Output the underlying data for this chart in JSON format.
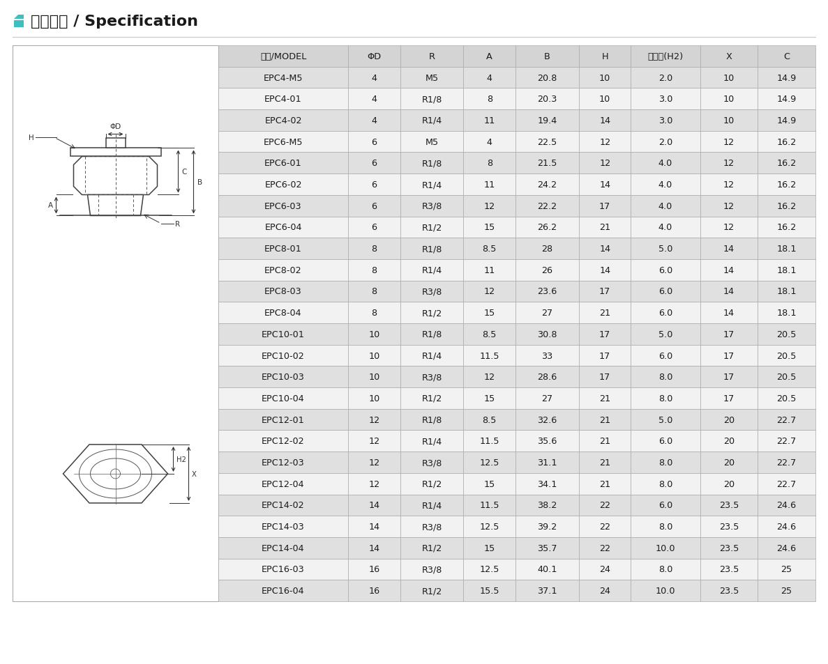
{
  "title": "技术参数 / Specification",
  "columns": [
    "型号/MODEL",
    "ΦD",
    "R",
    "A",
    "B",
    "H",
    "内六角(H2)",
    "X",
    "C"
  ],
  "rows": [
    [
      "EPC4-M5",
      "4",
      "M5",
      "4",
      "20.8",
      "10",
      "2.0",
      "10",
      "14.9"
    ],
    [
      "EPC4-01",
      "4",
      "R1/8",
      "8",
      "20.3",
      "10",
      "3.0",
      "10",
      "14.9"
    ],
    [
      "EPC4-02",
      "4",
      "R1/4",
      "11",
      "19.4",
      "14",
      "3.0",
      "10",
      "14.9"
    ],
    [
      "EPC6-M5",
      "6",
      "M5",
      "4",
      "22.5",
      "12",
      "2.0",
      "12",
      "16.2"
    ],
    [
      "EPC6-01",
      "6",
      "R1/8",
      "8",
      "21.5",
      "12",
      "4.0",
      "12",
      "16.2"
    ],
    [
      "EPC6-02",
      "6",
      "R1/4",
      "11",
      "24.2",
      "14",
      "4.0",
      "12",
      "16.2"
    ],
    [
      "EPC6-03",
      "6",
      "R3/8",
      "12",
      "22.2",
      "17",
      "4.0",
      "12",
      "16.2"
    ],
    [
      "EPC6-04",
      "6",
      "R1/2",
      "15",
      "26.2",
      "21",
      "4.0",
      "12",
      "16.2"
    ],
    [
      "EPC8-01",
      "8",
      "R1/8",
      "8.5",
      "28",
      "14",
      "5.0",
      "14",
      "18.1"
    ],
    [
      "EPC8-02",
      "8",
      "R1/4",
      "11",
      "26",
      "14",
      "6.0",
      "14",
      "18.1"
    ],
    [
      "EPC8-03",
      "8",
      "R3/8",
      "12",
      "23.6",
      "17",
      "6.0",
      "14",
      "18.1"
    ],
    [
      "EPC8-04",
      "8",
      "R1/2",
      "15",
      "27",
      "21",
      "6.0",
      "14",
      "18.1"
    ],
    [
      "EPC10-01",
      "10",
      "R1/8",
      "8.5",
      "30.8",
      "17",
      "5.0",
      "17",
      "20.5"
    ],
    [
      "EPC10-02",
      "10",
      "R1/4",
      "11.5",
      "33",
      "17",
      "6.0",
      "17",
      "20.5"
    ],
    [
      "EPC10-03",
      "10",
      "R3/8",
      "12",
      "28.6",
      "17",
      "8.0",
      "17",
      "20.5"
    ],
    [
      "EPC10-04",
      "10",
      "R1/2",
      "15",
      "27",
      "21",
      "8.0",
      "17",
      "20.5"
    ],
    [
      "EPC12-01",
      "12",
      "R1/8",
      "8.5",
      "32.6",
      "21",
      "5.0",
      "20",
      "22.7"
    ],
    [
      "EPC12-02",
      "12",
      "R1/4",
      "11.5",
      "35.6",
      "21",
      "6.0",
      "20",
      "22.7"
    ],
    [
      "EPC12-03",
      "12",
      "R3/8",
      "12.5",
      "31.1",
      "21",
      "8.0",
      "20",
      "22.7"
    ],
    [
      "EPC12-04",
      "12",
      "R1/2",
      "15",
      "34.1",
      "21",
      "8.0",
      "20",
      "22.7"
    ],
    [
      "EPC14-02",
      "14",
      "R1/4",
      "11.5",
      "38.2",
      "22",
      "6.0",
      "23.5",
      "24.6"
    ],
    [
      "EPC14-03",
      "14",
      "R3/8",
      "12.5",
      "39.2",
      "22",
      "8.0",
      "23.5",
      "24.6"
    ],
    [
      "EPC14-04",
      "14",
      "R1/2",
      "15",
      "35.7",
      "22",
      "10.0",
      "23.5",
      "24.6"
    ],
    [
      "EPC16-03",
      "16",
      "R3/8",
      "12.5",
      "40.1",
      "24",
      "8.0",
      "23.5",
      "25"
    ],
    [
      "EPC16-04",
      "16",
      "R1/2",
      "15.5",
      "37.1",
      "24",
      "10.0",
      "23.5",
      "25"
    ]
  ],
  "header_bg": "#d4d4d4",
  "odd_row_bg": "#e0e0e0",
  "even_row_bg": "#f2f2f2",
  "border_color": "#aaaaaa",
  "text_color": "#1a1a1a",
  "title_color": "#1a1a1a",
  "accent_color_top": "#3dbfbf",
  "accent_color_bot": "#3dbfbf",
  "diagram_color": "#333333",
  "figure_bg": "#ffffff"
}
